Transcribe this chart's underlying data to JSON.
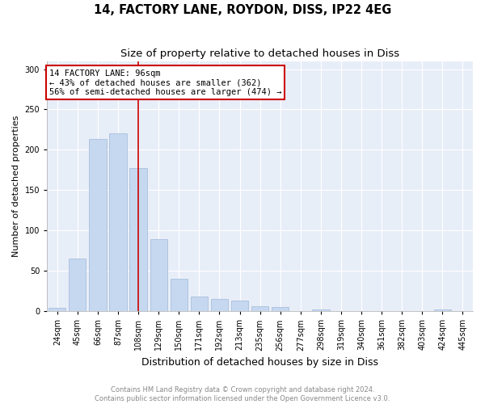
{
  "title": "14, FACTORY LANE, ROYDON, DISS, IP22 4EG",
  "subtitle": "Size of property relative to detached houses in Diss",
  "xlabel": "Distribution of detached houses by size in Diss",
  "ylabel": "Number of detached properties",
  "categories": [
    "24sqm",
    "45sqm",
    "66sqm",
    "87sqm",
    "108sqm",
    "129sqm",
    "150sqm",
    "171sqm",
    "192sqm",
    "213sqm",
    "235sqm",
    "256sqm",
    "277sqm",
    "298sqm",
    "319sqm",
    "340sqm",
    "361sqm",
    "382sqm",
    "403sqm",
    "424sqm",
    "445sqm"
  ],
  "values": [
    4,
    65,
    213,
    220,
    177,
    89,
    40,
    18,
    15,
    13,
    6,
    5,
    0,
    2,
    0,
    0,
    0,
    0,
    0,
    2,
    0
  ],
  "bar_color": "#c5d8f0",
  "bar_edge_color": "#a0b8d8",
  "background_color": "#e8eef8",
  "grid_color": "#ffffff",
  "red_line_x": 4.0,
  "annotation_box_text": "14 FACTORY LANE: 96sqm\n← 43% of detached houses are smaller (362)\n56% of semi-detached houses are larger (474) →",
  "red_line_color": "#cc0000",
  "copyright_text": "Contains HM Land Registry data © Crown copyright and database right 2024.\nContains public sector information licensed under the Open Government Licence v3.0.",
  "ylim": [
    0,
    310
  ],
  "yticks": [
    0,
    50,
    100,
    150,
    200,
    250,
    300
  ],
  "title_fontsize": 10.5,
  "subtitle_fontsize": 9.5,
  "xlabel_fontsize": 9,
  "ylabel_fontsize": 8,
  "tick_fontsize": 7,
  "annot_fontsize": 7.5
}
